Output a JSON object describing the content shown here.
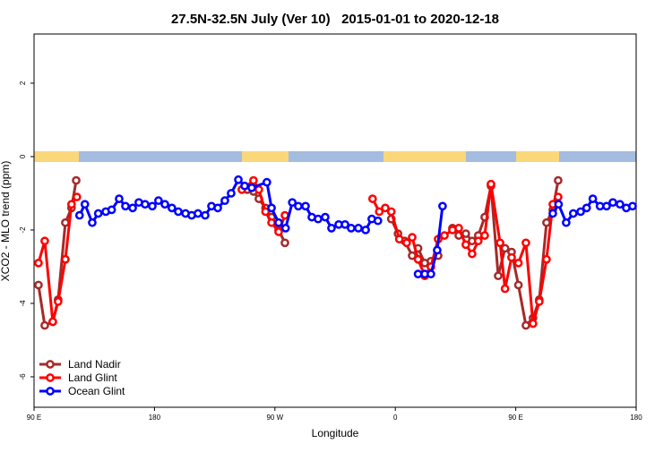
{
  "chart_data": {
    "type": "line",
    "title": "27.5N-32.5N July (Ver 10)   2015-01-01 to 2020-12-18",
    "xlabel": "Longitude",
    "ylabel": "XCO2 - MLO trend (ppm)",
    "xlim": [
      90,
      540
    ],
    "ylim": [
      -6.83,
      3.34
    ],
    "xticks": [
      {
        "value": 90,
        "label": "90 E"
      },
      180,
      {
        "value": 270,
        "label": "90 W"
      },
      {
        "value": 360,
        "label": "0"
      },
      {
        "value": 450,
        "label": "90 E"
      },
      {
        "value": 540,
        "label": "180"
      }
    ],
    "yticks": [
      -6,
      -4,
      -2,
      0,
      2
    ],
    "legend": "lower left",
    "series": [
      {
        "name": "Land Nadir",
        "color": "#a52a2a",
        "x": [
          93.3,
          98,
          104,
          108,
          113.4,
          118,
          121.5,
          null,
          249.4,
          254,
          258,
          263,
          267.5,
          272.8,
          277.5,
          null,
          357,
          362,
          367,
          372.6,
          377,
          382,
          386.6,
          392,
          null,
          402.7,
          407.4,
          412.7,
          417.4,
          422,
          426.8,
          431.5,
          436.9,
          442,
          446.9,
          452,
          457.6,
          462.9,
          467.6,
          473,
          477.7,
          481.7
        ],
        "values": [
          -3.5,
          -4.6,
          -4.5,
          -3.9,
          -1.8,
          -1.4,
          -0.65,
          null,
          -0.9,
          -0.95,
          -1.15,
          -1.4,
          -1.65,
          -2.0,
          -2.35,
          null,
          -1.7,
          -2.1,
          -2.3,
          -2.7,
          -2.5,
          -2.9,
          -2.85,
          -2.7,
          null,
          -1.95,
          -2.15,
          -2.1,
          -2.3,
          -2.15,
          -1.65,
          -0.8,
          -3.25,
          -2.5,
          -2.6,
          -3.5,
          -4.6,
          -4.4,
          -3.9,
          -1.8,
          -1.45,
          -0.65
        ]
      },
      {
        "name": "Land Glint",
        "color": "#ff0000",
        "x": [
          93.3,
          98,
          104,
          108,
          113.4,
          118,
          122,
          null,
          245.3,
          254,
          258,
          263,
          267.5,
          272.8,
          277.5,
          null,
          343,
          348,
          352.5,
          357,
          363,
          368.5,
          372.6,
          377,
          382,
          386.6,
          392,
          396.7,
          402.7,
          407.4,
          412.7,
          417.4,
          422,
          426.8,
          431.5,
          438.3,
          442,
          446.9,
          452,
          457.6,
          462.9,
          467.6,
          473,
          477.7,
          481.7
        ],
        "values": [
          -2.9,
          -2.3,
          -4.5,
          -3.95,
          -2.8,
          -1.3,
          -1.1,
          null,
          -0.9,
          -0.65,
          -0.9,
          -1.5,
          -1.8,
          -2.05,
          -1.6,
          null,
          -1.15,
          -1.5,
          -1.4,
          -1.5,
          -2.25,
          -2.35,
          -2.2,
          -2.8,
          -3.25,
          -3.0,
          -2.25,
          -2.15,
          -2.0,
          -1.95,
          -2.4,
          -2.65,
          -2.3,
          -2.15,
          -0.75,
          -2.35,
          -3.6,
          -2.75,
          -2.9,
          -2.35,
          -4.55,
          -3.95,
          -2.8,
          -1.3,
          -1.1
        ]
      },
      {
        "name": "Ocean Glint",
        "color": "#0000ff",
        "x": [
          124,
          128,
          133.5,
          138,
          143.6,
          148,
          153.6,
          158.3,
          163.7,
          168.3,
          173,
          178.4,
          183,
          187.8,
          193,
          197.8,
          203.2,
          207.8,
          212.5,
          217.9,
          222.6,
          227.3,
          232.6,
          237.3,
          242.7,
          247.4,
          252.7,
          264,
          267.5,
          272.8,
          278,
          283,
          287.5,
          292.9,
          297.6,
          302.3,
          307.6,
          312.3,
          317.7,
          322.4,
          327,
          332.4,
          337.8,
          342.4,
          347,
          null,
          377,
          382,
          386.6,
          391.3,
          395.3,
          null,
          477.7,
          482,
          487.7,
          493,
          498.5,
          503,
          507.6,
          513,
          517.9,
          522.6,
          527.9,
          532.6,
          537.3
        ],
        "values": [
          -1.6,
          -1.3,
          -1.8,
          -1.55,
          -1.5,
          -1.45,
          -1.15,
          -1.35,
          -1.4,
          -1.25,
          -1.3,
          -1.35,
          -1.2,
          -1.3,
          -1.4,
          -1.5,
          -1.55,
          -1.6,
          -1.55,
          -1.6,
          -1.35,
          -1.4,
          -1.2,
          -1.0,
          -0.63,
          -0.8,
          -0.85,
          -0.7,
          -1.4,
          -1.8,
          -1.95,
          -1.25,
          -1.35,
          -1.35,
          -1.65,
          -1.7,
          -1.65,
          -1.95,
          -1.85,
          -1.85,
          -1.95,
          -1.95,
          -2.0,
          -1.7,
          -1.75,
          null,
          -3.2,
          -3.2,
          -3.2,
          -2.55,
          -1.35,
          null,
          -1.55,
          -1.3,
          -1.8,
          -1.55,
          -1.5,
          -1.4,
          -1.15,
          -1.35,
          -1.35,
          -1.25,
          -1.3,
          -1.4,
          -1.35
        ]
      }
    ]
  }
}
